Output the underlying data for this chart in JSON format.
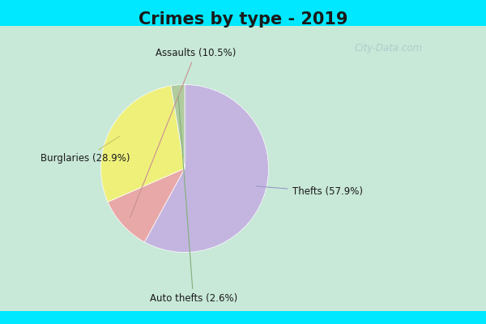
{
  "title": "Crimes by type - 2019",
  "slices": [
    {
      "label": "Thefts",
      "pct": 57.9,
      "color": "#c4b5e0"
    },
    {
      "label": "Assaults",
      "pct": 10.5,
      "color": "#e8a8a8"
    },
    {
      "label": "Burglaries",
      "pct": 28.9,
      "color": "#eef07a"
    },
    {
      "label": "Auto thefts",
      "pct": 2.6,
      "color": "#b0cc9e"
    }
  ],
  "title_fontsize": 15,
  "label_fontsize": 8.5,
  "bg_color_outer": "#00e8ff",
  "bg_color_inner_left": "#c8e8d8",
  "bg_color_inner_right": "#e8f0f0",
  "watermark": "City-Data.com",
  "watermark_color": "#a8c8cc",
  "startangle": 90
}
